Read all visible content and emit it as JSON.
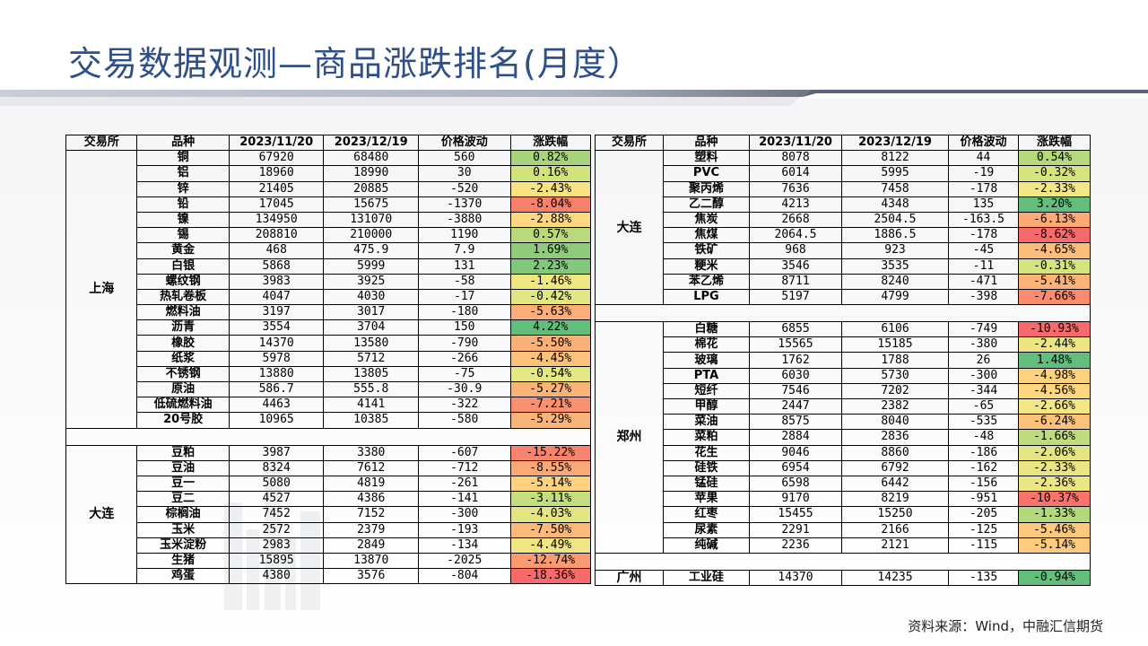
{
  "title": "交易数据观测—商品涨跌排名(月度）",
  "source": "资料来源：Wind，中融汇信期货",
  "headers": [
    "交易所",
    "品种",
    "2023/11/20",
    "2023/12/19",
    "价格波动",
    "涨跌幅"
  ],
  "left": {
    "groups": [
      {
        "exchange": "上海",
        "rows": [
          {
            "name": "铜",
            "p1": "67920",
            "p2": "68480",
            "chg": "560",
            "pct": "0.82%",
            "color": "#a7d47a"
          },
          {
            "name": "铝",
            "p1": "18960",
            "p2": "18990",
            "chg": "30",
            "pct": "0.16%",
            "color": "#d2e37c"
          },
          {
            "name": "锌",
            "p1": "21405",
            "p2": "20885",
            "chg": "-520",
            "pct": "-2.43%",
            "color": "#fbe281"
          },
          {
            "name": "铅",
            "p1": "17045",
            "p2": "15675",
            "chg": "-1370",
            "pct": "-8.04%",
            "color": "#f8806d"
          },
          {
            "name": "镍",
            "p1": "134950",
            "p2": "131070",
            "chg": "-3880",
            "pct": "-2.88%",
            "color": "#fcd980"
          },
          {
            "name": "锡",
            "p1": "208810",
            "p2": "210000",
            "chg": "1190",
            "pct": "0.57%",
            "color": "#b9da7b"
          },
          {
            "name": "黄金",
            "p1": "468",
            "p2": "475.9",
            "chg": "7.9",
            "pct": "1.69%",
            "color": "#8fcb7b"
          },
          {
            "name": "白银",
            "p1": "5868",
            "p2": "5999",
            "chg": "131",
            "pct": "2.23%",
            "color": "#82c77c"
          },
          {
            "name": "螺纹钢",
            "p1": "3983",
            "p2": "3925",
            "chg": "-58",
            "pct": "-1.46%",
            "color": "#f1e683"
          },
          {
            "name": "热轧卷板",
            "p1": "4047",
            "p2": "4030",
            "chg": "-17",
            "pct": "-0.42%",
            "color": "#e1e881"
          },
          {
            "name": "燃料油",
            "p1": "3197",
            "p2": "3017",
            "chg": "-180",
            "pct": "-5.63%",
            "color": "#fbae77"
          },
          {
            "name": "沥青",
            "p1": "3554",
            "p2": "3704",
            "chg": "150",
            "pct": "4.22%",
            "color": "#63be7b"
          },
          {
            "name": "橡胶",
            "p1": "14370",
            "p2": "13580",
            "chg": "-790",
            "pct": "-5.50%",
            "color": "#fbb077"
          },
          {
            "name": "纸浆",
            "p1": "5978",
            "p2": "5712",
            "chg": "-266",
            "pct": "-4.45%",
            "color": "#fcc17b"
          },
          {
            "name": "不锈钢",
            "p1": "13880",
            "p2": "13805",
            "chg": "-75",
            "pct": "-0.54%",
            "color": "#e4e882"
          },
          {
            "name": "原油",
            "p1": "586.7",
            "p2": "555.8",
            "chg": "-30.9",
            "pct": "-5.27%",
            "color": "#fbb478"
          },
          {
            "name": "低硫燃料油",
            "p1": "4463",
            "p2": "4141",
            "chg": "-322",
            "pct": "-7.21%",
            "color": "#f9906f"
          },
          {
            "name": "20号胶",
            "p1": "10965",
            "p2": "10385",
            "chg": "-580",
            "pct": "-5.29%",
            "color": "#fbb478"
          }
        ]
      },
      {
        "exchange": "大连",
        "rows": [
          {
            "name": "豆粕",
            "p1": "3987",
            "p2": "3380",
            "chg": "-607",
            "pct": "-15.22%",
            "color": "#f8846d"
          },
          {
            "name": "豆油",
            "p1": "8324",
            "p2": "7612",
            "chg": "-712",
            "pct": "-8.55%",
            "color": "#fba877"
          },
          {
            "name": "豆一",
            "p1": "5080",
            "p2": "4819",
            "chg": "-261",
            "pct": "-5.14%",
            "color": "#fed27f"
          },
          {
            "name": "豆二",
            "p1": "4527",
            "p2": "4386",
            "chg": "-141",
            "pct": "-3.11%",
            "color": "#c5dd7d"
          },
          {
            "name": "棕榈油",
            "p1": "7452",
            "p2": "7152",
            "chg": "-300",
            "pct": "-4.03%",
            "color": "#e2e582"
          },
          {
            "name": "玉米",
            "p1": "2572",
            "p2": "2379",
            "chg": "-193",
            "pct": "-7.50%",
            "color": "#fcb97a"
          },
          {
            "name": "玉米淀粉",
            "p1": "2983",
            "p2": "2849",
            "chg": "-134",
            "pct": "-4.49%",
            "color": "#f1e483"
          },
          {
            "name": "生猪",
            "p1": "15895",
            "p2": "13870",
            "chg": "-2025",
            "pct": "-12.74%",
            "color": "#f99a71"
          },
          {
            "name": "鸡蛋",
            "p1": "4380",
            "p2": "3576",
            "chg": "-804",
            "pct": "-18.36%",
            "color": "#f8696b"
          }
        ]
      }
    ]
  },
  "right": {
    "groups": [
      {
        "exchange": "大连",
        "rows": [
          {
            "name": "塑料",
            "p1": "8078",
            "p2": "8122",
            "chg": "44",
            "pct": "0.54%",
            "color": "#b5d97b"
          },
          {
            "name": "PVC",
            "p1": "6014",
            "p2": "5995",
            "chg": "-19",
            "pct": "-0.32%",
            "color": "#d5e47e"
          },
          {
            "name": "聚丙烯",
            "p1": "7636",
            "p2": "7458",
            "chg": "-178",
            "pct": "-2.33%",
            "color": "#f3e784"
          },
          {
            "name": "乙二醇",
            "p1": "4213",
            "p2": "4348",
            "chg": "135",
            "pct": "3.20%",
            "color": "#63be7b"
          },
          {
            "name": "焦炭",
            "p1": "2668",
            "p2": "2504.5",
            "chg": "-163.5",
            "pct": "-6.13%",
            "color": "#fbaa76"
          },
          {
            "name": "焦煤",
            "p1": "2064.5",
            "p2": "1886.5",
            "chg": "-178",
            "pct": "-8.62%",
            "color": "#f8696b"
          },
          {
            "name": "铁矿",
            "p1": "968",
            "p2": "923",
            "chg": "-45",
            "pct": "-4.65%",
            "color": "#fcbd7b"
          },
          {
            "name": "粳米",
            "p1": "3546",
            "p2": "3535",
            "chg": "-11",
            "pct": "-0.31%",
            "color": "#d5e47e"
          },
          {
            "name": "苯乙烯",
            "p1": "8711",
            "p2": "8240",
            "chg": "-471",
            "pct": "-5.41%",
            "color": "#fbb378"
          },
          {
            "name": "LPG",
            "p1": "5197",
            "p2": "4799",
            "chg": "-398",
            "pct": "-7.66%",
            "color": "#f98b6f"
          }
        ]
      },
      {
        "exchange": "郑州",
        "rows": [
          {
            "name": "白糖",
            "p1": "6855",
            "p2": "6106",
            "chg": "-749",
            "pct": "-10.93%",
            "color": "#f8696b"
          },
          {
            "name": "棉花",
            "p1": "15565",
            "p2": "15185",
            "chg": "-380",
            "pct": "-2.44%",
            "color": "#ebe582"
          },
          {
            "name": "玻璃",
            "p1": "1762",
            "p2": "1788",
            "chg": "26",
            "pct": "1.48%",
            "color": "#63be7b"
          },
          {
            "name": "PTA",
            "p1": "6030",
            "p2": "5730",
            "chg": "-300",
            "pct": "-4.98%",
            "color": "#fdd27f"
          },
          {
            "name": "短纤",
            "p1": "7546",
            "p2": "7202",
            "chg": "-344",
            "pct": "-4.56%",
            "color": "#fed680"
          },
          {
            "name": "甲醇",
            "p1": "2447",
            "p2": "2382",
            "chg": "-65",
            "pct": "-2.66%",
            "color": "#f3e684"
          },
          {
            "name": "菜油",
            "p1": "8575",
            "p2": "8040",
            "chg": "-535",
            "pct": "-6.24%",
            "color": "#fcc17b"
          },
          {
            "name": "菜粕",
            "p1": "2884",
            "p2": "2836",
            "chg": "-48",
            "pct": "-1.66%",
            "color": "#bfdb7c"
          },
          {
            "name": "花生",
            "p1": "9046",
            "p2": "8860",
            "chg": "-186",
            "pct": "-2.06%",
            "color": "#e3e582"
          },
          {
            "name": "硅铁",
            "p1": "6954",
            "p2": "6792",
            "chg": "-162",
            "pct": "-2.33%",
            "color": "#e9e583"
          },
          {
            "name": "锰硅",
            "p1": "6598",
            "p2": "6442",
            "chg": "-156",
            "pct": "-2.36%",
            "color": "#ebe583"
          },
          {
            "name": "苹果",
            "p1": "9170",
            "p2": "8219",
            "chg": "-951",
            "pct": "-10.37%",
            "color": "#f8736c"
          },
          {
            "name": "红枣",
            "p1": "15455",
            "p2": "15250",
            "chg": "-205",
            "pct": "-1.33%",
            "color": "#b3d77b"
          },
          {
            "name": "尿素",
            "p1": "2291",
            "p2": "2166",
            "chg": "-125",
            "pct": "-5.46%",
            "color": "#fdc77d"
          },
          {
            "name": "纯碱",
            "p1": "2236",
            "p2": "2121",
            "chg": "-115",
            "pct": "-5.14%",
            "color": "#fdcb7e"
          }
        ]
      },
      {
        "exchange": "广州",
        "rows": [
          {
            "name": "工业硅",
            "p1": "14370",
            "p2": "14235",
            "chg": "-135",
            "pct": "-0.94%",
            "color": "#63be7b"
          }
        ]
      }
    ]
  }
}
